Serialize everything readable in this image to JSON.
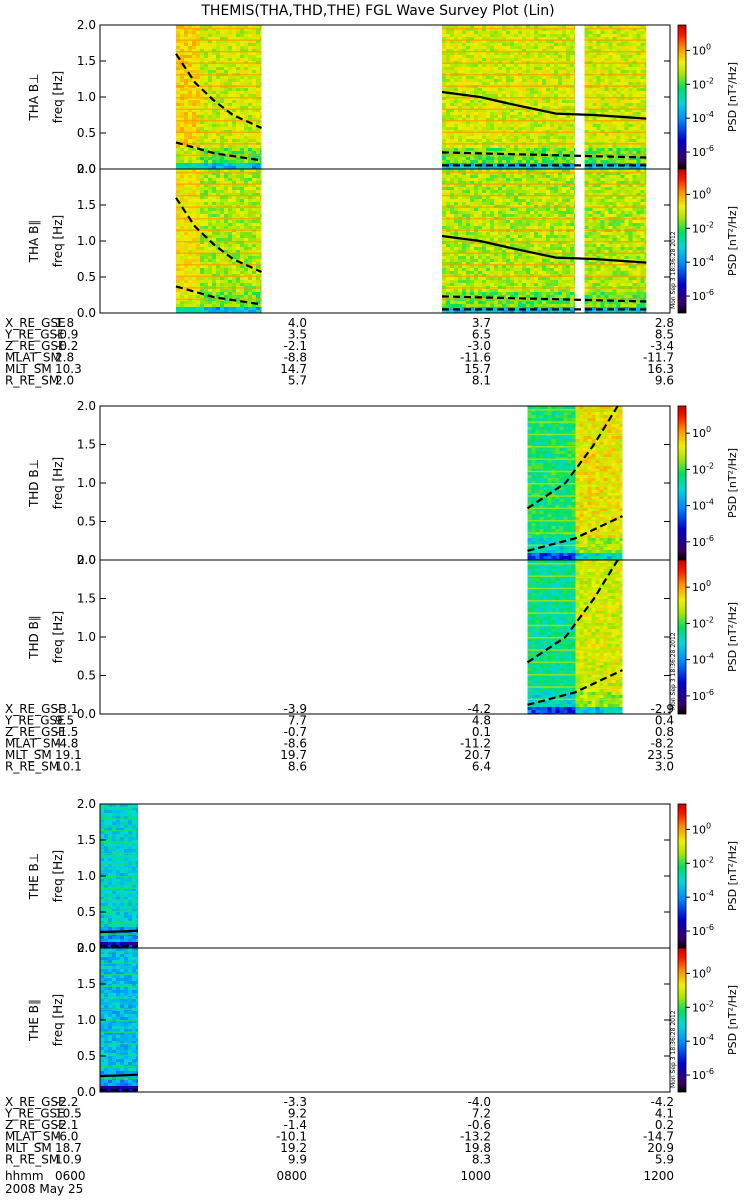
{
  "chart_data": {
    "type": "heatmap",
    "title": "THEMIS(THA,THD,THE) FGL Wave Survey Plot (Lin)",
    "date_label": "2008 May 25",
    "x_axis_label": "hhmm",
    "x_ticks": [
      "0600",
      "0800",
      "1000",
      "1200"
    ],
    "x_range_hhmm": [
      "0600",
      "1200"
    ],
    "colorbar": {
      "label": "PSD [nT²/Hz]",
      "range_log10": [
        -7,
        1.5
      ],
      "tick_exponents": [
        0,
        -2,
        -4,
        -6
      ],
      "scale": "log"
    },
    "panel_y": {
      "label": "freq [Hz]",
      "ylim": [
        0,
        2.0
      ],
      "ticks": [
        "0.0",
        "0.5",
        "1.0",
        "1.5",
        "2.0"
      ]
    },
    "stamp": "Mon Sep 3 18:36:28 2012",
    "probes": [
      {
        "id": "THA",
        "panels": [
          "THA B⊥",
          "THA B∥"
        ],
        "coverage_hours": [
          [
            6.8,
            7.7
          ],
          [
            9.6,
            11.0
          ],
          [
            11.1,
            11.75
          ]
        ],
        "saturated_until_hour": 7.05,
        "level": 0.7,
        "curves": [
          {
            "style": "dashed",
            "x": [
              6.8,
              7.0,
              7.2,
              7.4,
              7.7
            ],
            "y": [
              1.6,
              1.2,
              0.95,
              0.75,
              0.57
            ]
          },
          {
            "style": "dashed",
            "x": [
              6.8,
              7.2,
              7.7
            ],
            "y": [
              0.37,
              0.22,
              0.12
            ]
          },
          {
            "style": "solid",
            "x": [
              9.6,
              10.0,
              10.4,
              10.8,
              11.2,
              11.75
            ],
            "y": [
              1.07,
              1.0,
              0.88,
              0.77,
              0.75,
              0.7
            ]
          },
          {
            "style": "dashed",
            "x": [
              9.6,
              11.75
            ],
            "y": [
              0.23,
              0.16
            ]
          },
          {
            "style": "dashed",
            "x": [
              9.6,
              11.75
            ],
            "y": [
              0.05,
              0.05
            ]
          }
        ],
        "orbit": {
          "X_RE_GSE": [
            "1.8",
            "4.0",
            "3.7",
            "2.8"
          ],
          "Y_RE_GSE": [
            "-0.9",
            "3.5",
            "6.5",
            "8.5"
          ],
          "Z_RE_GSE": [
            "-0.2",
            "-2.1",
            "-3.0",
            "-3.4"
          ],
          "MLAT_SM": [
            "2.8",
            "-8.8",
            "-11.6",
            "-11.7"
          ],
          "MLT_SM": [
            "10.3",
            "14.7",
            "15.7",
            "16.3"
          ],
          "R_RE_SM": [
            "2.0",
            "5.7",
            "8.1",
            "9.6"
          ]
        }
      },
      {
        "id": "THD",
        "panels": [
          "THD B⊥",
          "THD B∥"
        ],
        "coverage_hours": [
          [
            10.5,
            11.5
          ]
        ],
        "saturated_until_hour": 0,
        "high_from_hour": 11.0,
        "level": 0.55,
        "curves": [
          {
            "style": "dashed",
            "x": [
              10.5,
              10.9,
              11.2,
              11.45
            ],
            "y": [
              0.67,
              1.0,
              1.5,
              2.0
            ]
          },
          {
            "style": "dashed",
            "x": [
              10.5,
              11.0,
              11.5
            ],
            "y": [
              0.12,
              0.28,
              0.57
            ]
          }
        ],
        "orbit": {
          "X_RE_GSE": [
            "-3.1",
            "-3.9",
            "-4.2",
            "-2.9"
          ],
          "Y_RE_GSE": [
            "9.5",
            "7.7",
            "4.8",
            "0.4"
          ],
          "Z_RE_GSE": [
            "-1.5",
            "-0.7",
            "0.1",
            "0.8"
          ],
          "MLAT_SM": [
            "-4.8",
            "-8.6",
            "-11.2",
            "-8.2"
          ],
          "MLT_SM": [
            "19.1",
            "19.7",
            "20.7",
            "23.5"
          ],
          "R_RE_SM": [
            "10.1",
            "8.6",
            "6.4",
            "3.0"
          ]
        }
      },
      {
        "id": "THE",
        "panels": [
          "THE B⊥",
          "THE B∥"
        ],
        "coverage_hours": [
          [
            6.0,
            6.4
          ]
        ],
        "saturated_until_hour": 0,
        "level": 0.45,
        "curves": [
          {
            "style": "solid",
            "x": [
              6.0,
              6.4
            ],
            "y": [
              0.22,
              0.24
            ]
          },
          {
            "style": "dashed",
            "x": [
              6.0,
              6.4
            ],
            "y": [
              0.03,
              0.03
            ]
          }
        ],
        "orbit": {
          "X_RE_GSE": [
            "-2.2",
            "-3.3",
            "-4.0",
            "-4.2"
          ],
          "Y_RE_GSE": [
            "10.5",
            "9.2",
            "7.2",
            "4.1"
          ],
          "Z_RE_GSE": [
            "-2.1",
            "-1.4",
            "-0.6",
            "0.2"
          ],
          "MLAT_SM": [
            "-6.0",
            "-10.1",
            "-13.2",
            "-14.7"
          ],
          "MLT_SM": [
            "18.7",
            "19.2",
            "19.8",
            "20.9"
          ],
          "R_RE_SM": [
            "10.9",
            "9.9",
            "8.3",
            "5.9"
          ]
        }
      }
    ]
  }
}
